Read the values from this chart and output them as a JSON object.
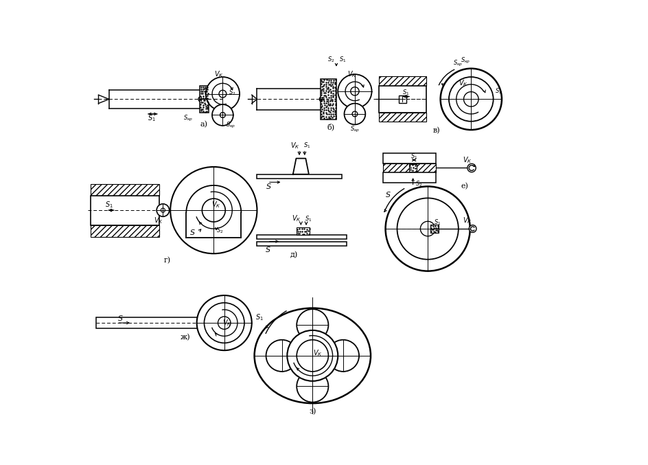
{
  "background_color": "#ffffff",
  "line_color": "#000000",
  "figsize": [
    9.44,
    6.77
  ],
  "dpi": 100,
  "xlim": [
    0,
    944
  ],
  "ylim": [
    0,
    677
  ]
}
